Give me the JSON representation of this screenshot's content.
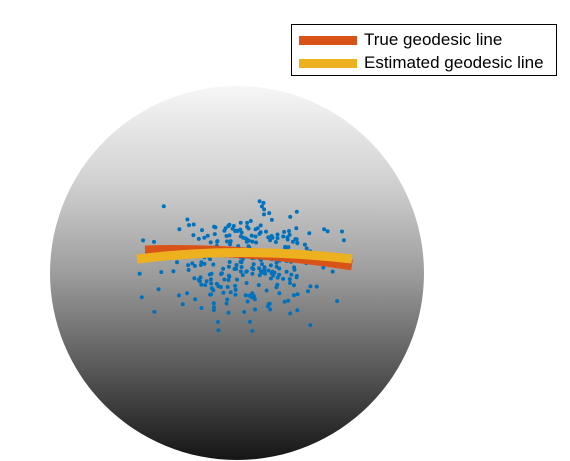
{
  "figure": {
    "legend": {
      "items": [
        {
          "label": "True geodesic line",
          "color": "#D95319"
        },
        {
          "label": "Estimated geodesic line",
          "color": "#EDB120"
        }
      ]
    },
    "sphere": {
      "shading": "white-to-black vertical gradient",
      "edge_color": "none"
    },
    "points": {
      "color": "#0072BD",
      "marker": "dot"
    }
  }
}
